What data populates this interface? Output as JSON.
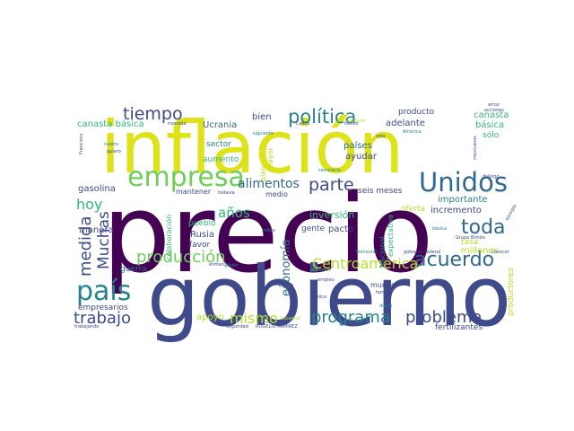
{
  "palette": {
    "dark_purple": "#440154",
    "indigo": "#3e4a89",
    "blue": "#31688e",
    "teal": "#26828e",
    "green": "#35b779",
    "lime": "#6ece58",
    "yellow_green": "#b5de2b",
    "yellow": "#dde318"
  },
  "words": [
    {
      "text": "precio",
      "color": "dark_purple",
      "weight": 1.0
    },
    {
      "text": "inflación",
      "color": "yellow",
      "weight": 0.9
    },
    {
      "text": "gobierno",
      "color": "indigo",
      "weight": 0.8
    },
    {
      "text": "empresa",
      "color": "lime",
      "weight": 0.35
    },
    {
      "text": "Unidos",
      "color": "blue",
      "weight": 0.3
    },
    {
      "text": "país",
      "color": "teal",
      "weight": 0.28
    },
    {
      "text": "política",
      "color": "teal",
      "weight": 0.22
    },
    {
      "text": "acuerdo",
      "color": "blue",
      "weight": 0.22
    },
    {
      "text": "toda",
      "color": "blue",
      "weight": 0.2
    },
    {
      "text": "parte",
      "color": "indigo",
      "weight": 0.18
    },
    {
      "text": "tiempo",
      "color": "indigo",
      "weight": 0.17
    },
    {
      "text": "programa",
      "color": "teal",
      "weight": 0.17
    },
    {
      "text": "problema",
      "color": "indigo",
      "weight": 0.17
    },
    {
      "text": "trabajo",
      "color": "indigo",
      "weight": 0.16
    },
    {
      "text": "producción",
      "color": "lime",
      "weight": 0.16
    },
    {
      "text": "medida",
      "color": "indigo",
      "weight": 0.15
    },
    {
      "text": "Muchas",
      "color": "indigo",
      "weight": 0.14
    },
    {
      "text": "Centroamérica",
      "color": "yellow_green",
      "weight": 0.14
    },
    {
      "text": "mismo",
      "color": "yellow_green",
      "weight": 0.13
    },
    {
      "text": "hoy",
      "color": "green",
      "weight": 0.13
    },
    {
      "text": "años",
      "color": "green",
      "weight": 0.12
    },
    {
      "text": "alimentos",
      "color": "blue",
      "weight": 0.11
    },
    {
      "text": "economía",
      "color": "blue",
      "weight": 0.1
    },
    {
      "text": "canasta básica",
      "color": "green",
      "weight": 0.08
    },
    {
      "text": "canasta",
      "color": "green",
      "weight": 0.08
    },
    {
      "text": "básica",
      "color": "green",
      "weight": 0.08
    },
    {
      "text": "Ucrania",
      "color": "blue",
      "weight": 0.08
    },
    {
      "text": "bien",
      "color": "indigo",
      "weight": 0.08
    },
    {
      "text": "adelante",
      "color": "indigo",
      "weight": 0.07
    },
    {
      "text": "producto",
      "color": "indigo",
      "weight": 0.07
    },
    {
      "text": "sólo",
      "color": "green",
      "weight": 0.07
    },
    {
      "text": "países",
      "color": "blue",
      "weight": 0.08
    },
    {
      "text": "ayudar",
      "color": "indigo",
      "weight": 0.08
    },
    {
      "text": "sector",
      "color": "teal",
      "weight": 0.07
    },
    {
      "text": "aumento",
      "color": "green",
      "weight": 0.07
    },
    {
      "text": "gasolina",
      "color": "indigo",
      "weight": 0.08
    },
    {
      "text": "manera",
      "color": "indigo",
      "weight": 0.08
    },
    {
      "text": "mantener",
      "color": "indigo",
      "weight": 0.06
    },
    {
      "text": "medio",
      "color": "indigo",
      "weight": 0.06
    },
    {
      "text": "seis meses",
      "color": "indigo",
      "weight": 0.08
    },
    {
      "text": "importante",
      "color": "teal",
      "weight": 0.08
    },
    {
      "text": "incremento",
      "color": "indigo",
      "weight": 0.08
    },
    {
      "text": "tasa",
      "color": "yellow_green",
      "weight": 0.07
    },
    {
      "text": "oferta",
      "color": "yellow_green",
      "weight": 0.07
    },
    {
      "text": "inversión",
      "color": "green",
      "weight": 0.09
    },
    {
      "text": "gente",
      "color": "indigo",
      "weight": 0.07
    },
    {
      "text": "pacto",
      "color": "indigo",
      "weight": 0.08
    },
    {
      "text": "millones",
      "color": "yellow_green",
      "weight": 0.08
    },
    {
      "text": "Rusia",
      "color": "indigo",
      "weight": 0.08
    },
    {
      "text": "pueblo",
      "color": "green",
      "weight": 0.07
    },
    {
      "text": "favor",
      "color": "indigo",
      "weight": 0.07
    },
    {
      "text": "guerra",
      "color": "blue",
      "weight": 0.07
    },
    {
      "text": "empresarios",
      "color": "indigo",
      "weight": 0.07
    },
    {
      "text": "apoyo",
      "color": "yellow_green",
      "weight": 0.08
    },
    {
      "text": "mundo",
      "color": "indigo",
      "weight": 0.06
    },
    {
      "text": "fertilizantes",
      "color": "indigo",
      "weight": 0.07
    },
    {
      "text": "productores",
      "color": "yellow_green",
      "weight": 0.06
    },
    {
      "text": "plan",
      "color": "yellow_green",
      "weight": 0.05
    },
    {
      "text": "mayor",
      "color": "yellow_green",
      "weight": 0.05
    },
    {
      "text": "colaboración",
      "color": "green",
      "weight": 0.05
    },
    {
      "text": "expectativa",
      "color": "green",
      "weight": 0.05
    },
    {
      "text": "Nacional",
      "color": "teal",
      "weight": 0.05
    },
    {
      "text": "gobierno federal",
      "color": "indigo",
      "weight": 0.03
    },
    {
      "text": "ROGELIO RAMÍREZ",
      "color": "indigo",
      "weight": 0.03
    },
    {
      "text": "Grupo Bimbo",
      "color": "indigo",
      "weight": 0.03
    },
    {
      "text": "diálogo",
      "color": "indigo",
      "weight": 0.03
    },
    {
      "text": "mexicanos",
      "color": "indigo",
      "weight": 0.03
    },
    {
      "text": "América",
      "color": "teal",
      "weight": 0.03
    },
    {
      "text": "siguiente",
      "color": "teal",
      "weight": 0.03
    },
    {
      "text": "trabajadores",
      "color": "yellow_green",
      "weight": 0.03
    },
    {
      "text": "Francisco",
      "color": "indigo",
      "weight": 0.03
    },
    {
      "text": "quiero",
      "color": "indigo",
      "weight": 0.03
    },
    {
      "text": "cuatro",
      "color": "teal",
      "weight": 0.03
    },
    {
      "text": "moneda",
      "color": "indigo",
      "weight": 0.03
    },
    {
      "text": "secretario",
      "color": "teal",
      "weight": 0.03
    },
    {
      "text": "todavía",
      "color": "indigo",
      "weight": 0.03
    },
    {
      "text": "enfrentar",
      "color": "indigo",
      "weight": 0.03
    },
    {
      "text": "índice",
      "color": "teal",
      "weight": 0.03
    },
    {
      "text": "poder",
      "color": "teal",
      "weight": 0.03
    },
    {
      "text": "bienestar",
      "color": "teal",
      "weight": 0.03
    },
    {
      "text": "podemos",
      "color": "green",
      "weight": 0.03
    },
    {
      "text": "empleo",
      "color": "indigo",
      "weight": 0.03
    },
    {
      "text": "COVID",
      "color": "indigo",
      "weight": 0.03
    },
    {
      "text": "pública",
      "color": "indigo",
      "weight": 0.03
    },
    {
      "text": "familia",
      "color": "indigo",
      "weight": 0.03
    },
    {
      "text": "diario",
      "color": "teal",
      "weight": 0.03
    },
    {
      "text": "seguridad",
      "color": "indigo",
      "weight": 0.03
    },
    {
      "text": "trabajando",
      "color": "indigo",
      "weight": 0.03
    },
    {
      "text": "tabamos",
      "color": "yellow_green",
      "weight": 0.03
    },
    {
      "text": "conocer",
      "color": "indigo",
      "weight": 0.03
    },
    {
      "text": "ejemplo",
      "color": "indigo",
      "weight": 0.03
    },
    {
      "text": "básica",
      "color": "teal",
      "weight": 0.03
    },
    {
      "text": "nuevo",
      "color": "indigo",
      "weight": 0.03
    },
    {
      "text": "vida",
      "color": "indigo",
      "weight": 0.03
    },
    {
      "text": "Calica",
      "color": "indigo",
      "weight": 0.03
    },
    {
      "text": "arroz",
      "color": "indigo",
      "weight": 0.03
    },
    {
      "text": "acciones",
      "color": "indigo",
      "weight": 0.03
    }
  ]
}
